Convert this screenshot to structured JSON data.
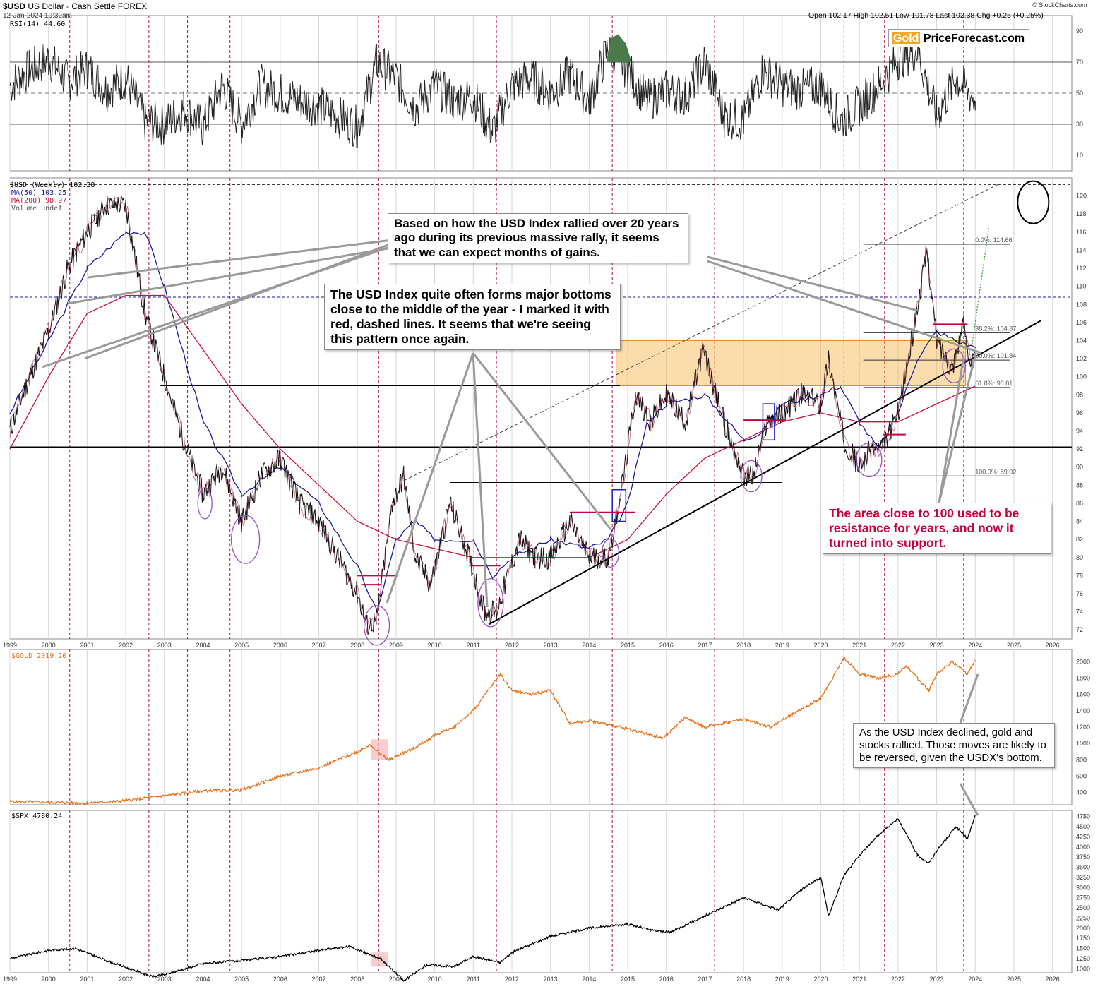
{
  "header": {
    "symbol": "$USD",
    "name": "US Dollar - Cash Settle",
    "exchange": "FOREX",
    "date": "12-Jan-2024 10:32am",
    "source": "© StockCharts.com",
    "ohlc": "Open 102.17  High 102.51  Low 101.78  Last 102.38  Chg +0.25 (+0.25%)"
  },
  "brand": {
    "gold": "Gold",
    "rest": "PriceForecast.com"
  },
  "panels": {
    "rsi_label": "RSI(14) 44.60",
    "price_label": "$USD (Weekly) 102.38",
    "ma50_label": "MA(50) 103.25",
    "ma200_label": "MA(200) 98.97",
    "volume_label": "Volume undef",
    "gold_label": "$GOLD 2019.20",
    "spx_label": "$SPX 4780.24"
  },
  "annotations": {
    "rally_note": "Based on how the USD Index rallied over 20 years ago during its previous massive rally, it seems that we can expect months of gains.",
    "bottoms_note": "The USD Index quite often forms major bottoms close to the middle of the year - I marked it with red, dashed lines. It seems that we're seeing this pattern once again.",
    "support_note": "The area close to 100 used to be resistance for years, and now it turned into support.",
    "gold_note": "As the USD Index declined, gold and stocks rallied. Those moves are likely to be reversed, given the USDX's bottom."
  },
  "fib_labels": [
    "0.0%: 114.66",
    "38.2%: 104.87",
    "50.0%: 101.84",
    "61.8%: 98.81",
    "100.0%: 89.02"
  ],
  "colors": {
    "usd": "#000000",
    "ma50": "#1a1aa0",
    "ma200": "#d0103a",
    "gold": "#e8701a",
    "spx": "#000000",
    "zone": "#f5b342",
    "circle": "#9b4fc8",
    "redline": "#c8003c",
    "rsi_fill": "#4a7a4a"
  },
  "chart_data": [
    {
      "type": "line",
      "title": "RSI(14) 44.60",
      "ylim": [
        0,
        100
      ],
      "yticks": [
        10,
        30,
        50,
        70,
        90
      ],
      "x": [
        1999.0,
        1999.5,
        2000.0,
        2000.5,
        2001.0,
        2001.5,
        2002.0,
        2002.5,
        2003.0,
        2003.5,
        2004.0,
        2004.5,
        2005.0,
        2005.5,
        2006.0,
        2006.5,
        2007.0,
        2007.5,
        2008.0,
        2008.5,
        2009.0,
        2009.5,
        2010.0,
        2010.5,
        2011.0,
        2011.5,
        2012.0,
        2012.5,
        2013.0,
        2013.5,
        2014.0,
        2014.5,
        2015.0,
        2015.5,
        2016.0,
        2016.5,
        2017.0,
        2017.5,
        2018.0,
        2018.5,
        2019.0,
        2019.5,
        2020.0,
        2020.5,
        2021.0,
        2021.5,
        2022.0,
        2022.5,
        2023.0,
        2023.5,
        2024.0
      ],
      "values": [
        55,
        65,
        72,
        58,
        66,
        52,
        60,
        32,
        30,
        40,
        28,
        55,
        30,
        55,
        50,
        45,
        42,
        35,
        28,
        70,
        60,
        40,
        55,
        45,
        48,
        25,
        55,
        60,
        50,
        62,
        45,
        80,
        65,
        45,
        52,
        48,
        70,
        35,
        32,
        65,
        55,
        52,
        55,
        32,
        42,
        55,
        72,
        78,
        35,
        60,
        45
      ]
    },
    {
      "type": "line",
      "title": "$USD (Weekly) 102.38",
      "ylim": [
        71,
        122
      ],
      "yticks": [
        72,
        74,
        76,
        78,
        80,
        82,
        84,
        86,
        88,
        90,
        92,
        94,
        96,
        98,
        100,
        102,
        104,
        106,
        108,
        110,
        112,
        114,
        116,
        118,
        120
      ],
      "xticks": [
        "1999",
        "2000",
        "2001",
        "2002",
        "2003",
        "2004",
        "2005",
        "2006",
        "2007",
        "2008",
        "2009",
        "2010",
        "2011",
        "2012",
        "2013",
        "2014",
        "2015",
        "2016",
        "2017",
        "2018",
        "2019",
        "2020",
        "2021",
        "2022",
        "2023",
        "2024",
        "2025",
        "2026"
      ],
      "series": [
        {
          "name": "$USD (Weekly) 102.38",
          "x": [
            1999.0,
            1999.5,
            2000.0,
            2000.5,
            2001.0,
            2001.5,
            2002.0,
            2002.5,
            2003.0,
            2003.5,
            2004.0,
            2004.5,
            2005.0,
            2005.5,
            2006.0,
            2006.5,
            2007.0,
            2007.5,
            2008.0,
            2008.25,
            2008.5,
            2008.9,
            2009.2,
            2009.5,
            2009.9,
            2010.4,
            2010.9,
            2011.3,
            2011.6,
            2012.2,
            2012.6,
            2013.0,
            2013.5,
            2014.0,
            2014.5,
            2014.9,
            2015.2,
            2015.6,
            2016.0,
            2016.5,
            2016.95,
            2017.5,
            2018.0,
            2018.25,
            2018.6,
            2019.0,
            2019.5,
            2020.0,
            2020.2,
            2020.6,
            2021.0,
            2021.3,
            2021.6,
            2022.0,
            2022.4,
            2022.75,
            2023.0,
            2023.4,
            2023.7,
            2023.9,
            2024.0
          ],
          "values": [
            94,
            100,
            105,
            112,
            116,
            119,
            119,
            107,
            100,
            93,
            87,
            90,
            84,
            89,
            91,
            86,
            84,
            80,
            76,
            72.5,
            73,
            86,
            89,
            80,
            77,
            86,
            80,
            74,
            74,
            82,
            80,
            80,
            84,
            80,
            80,
            89,
            98,
            95,
            98,
            95,
            103,
            95,
            89,
            89,
            95,
            96,
            98,
            97,
            102,
            93,
            90,
            92,
            92,
            96,
            105,
            114,
            104,
            101,
            106,
            101,
            102.38
          ]
        },
        {
          "name": "MA(50) 103.25",
          "x": [
            1999.0,
            2000.0,
            2001.0,
            2002.0,
            2002.5,
            2003.0,
            2004.0,
            2005.0,
            2006.0,
            2007.0,
            2008.0,
            2008.5,
            2009.0,
            2009.5,
            2010.0,
            2011.0,
            2011.5,
            2012.0,
            2013.0,
            2014.0,
            2014.5,
            2015.0,
            2015.5,
            2016.0,
            2017.0,
            2018.0,
            2018.5,
            2019.0,
            2020.0,
            2020.5,
            2021.0,
            2021.5,
            2022.0,
            2022.5,
            2023.0,
            2023.5,
            2024.0
          ],
          "values": [
            96,
            104,
            112,
            116,
            116,
            110,
            95,
            87,
            90,
            86,
            79,
            74,
            82,
            84,
            82,
            82,
            78,
            80,
            82,
            81,
            82,
            86,
            95,
            97,
            98,
            93,
            94,
            97,
            98,
            99,
            95,
            92,
            96,
            102,
            105,
            104,
            103.25
          ]
        },
        {
          "name": "MA(200) 98.97",
          "x": [
            1999.0,
            2000.0,
            2001.0,
            2002.0,
            2003.0,
            2004.0,
            2005.0,
            2006.0,
            2007.0,
            2008.0,
            2008.5,
            2009.0,
            2010.0,
            2011.0,
            2012.0,
            2013.0,
            2014.0,
            2015.0,
            2016.0,
            2017.0,
            2018.0,
            2019.0,
            2020.0,
            2021.0,
            2022.0,
            2023.0,
            2024.0
          ],
          "values": [
            92,
            100,
            107,
            109,
            109,
            103,
            97,
            92,
            88,
            84,
            83,
            82,
            81,
            80,
            80,
            80,
            80,
            82,
            87,
            91,
            93,
            95,
            96,
            95,
            95,
            97,
            98.97
          ]
        }
      ]
    },
    {
      "type": "line",
      "title": "$GOLD 2019.20",
      "ylim": [
        250,
        2150
      ],
      "yticks": [
        400,
        600,
        800,
        1000,
        1200,
        1400,
        1600,
        1800,
        2000
      ],
      "x": [
        1999.0,
        2000.0,
        2001.0,
        2002.0,
        2003.0,
        2004.0,
        2005.0,
        2006.0,
        2007.0,
        2008.0,
        2008.3,
        2008.8,
        2009.5,
        2010.0,
        2010.5,
        2011.0,
        2011.7,
        2012.0,
        2012.5,
        2013.0,
        2013.5,
        2014.0,
        2015.0,
        2015.9,
        2016.5,
        2017.0,
        2018.0,
        2018.7,
        2019.0,
        2019.5,
        2020.0,
        2020.6,
        2021.0,
        2021.5,
        2022.0,
        2022.2,
        2022.8,
        2023.0,
        2023.4,
        2023.8,
        2024.0
      ],
      "values": [
        290,
        280,
        270,
        300,
        360,
        420,
        430,
        600,
        700,
        900,
        980,
        800,
        950,
        1100,
        1200,
        1400,
        1850,
        1650,
        1600,
        1650,
        1250,
        1280,
        1180,
        1060,
        1320,
        1200,
        1300,
        1200,
        1290,
        1420,
        1550,
        2050,
        1850,
        1800,
        1850,
        1950,
        1650,
        1850,
        2000,
        1850,
        2019.2
      ]
    },
    {
      "type": "line",
      "title": "$SPX 4780.24",
      "ylim": [
        900,
        4900
      ],
      "yticks": [
        1000,
        1250,
        1500,
        1750,
        2000,
        2250,
        2500,
        2750,
        3000,
        3250,
        3500,
        3750,
        4000,
        4250,
        4500,
        4750
      ],
      "x": [
        1999.0,
        2000.0,
        2000.7,
        2001.5,
        2002.7,
        2003.0,
        2004.0,
        2005.0,
        2006.0,
        2007.0,
        2007.8,
        2008.3,
        2008.6,
        2009.2,
        2009.8,
        2010.5,
        2011.0,
        2011.7,
        2012.0,
        2013.0,
        2014.0,
        2015.0,
        2015.6,
        2016.1,
        2017.0,
        2018.0,
        2018.9,
        2019.5,
        2020.0,
        2020.2,
        2020.6,
        2021.0,
        2021.5,
        2022.0,
        2022.5,
        2022.8,
        2023.0,
        2023.5,
        2023.8,
        2024.0
      ],
      "values": [
        1250,
        1450,
        1500,
        1200,
        800,
        850,
        1130,
        1200,
        1300,
        1450,
        1550,
        1350,
        1250,
        700,
        1100,
        1050,
        1300,
        1150,
        1400,
        1800,
        2000,
        2100,
        1950,
        1900,
        2300,
        2750,
        2450,
        2950,
        3250,
        2300,
        3300,
        3800,
        4300,
        4700,
        3800,
        3600,
        3900,
        4500,
        4200,
        4780.24
      ]
    }
  ]
}
